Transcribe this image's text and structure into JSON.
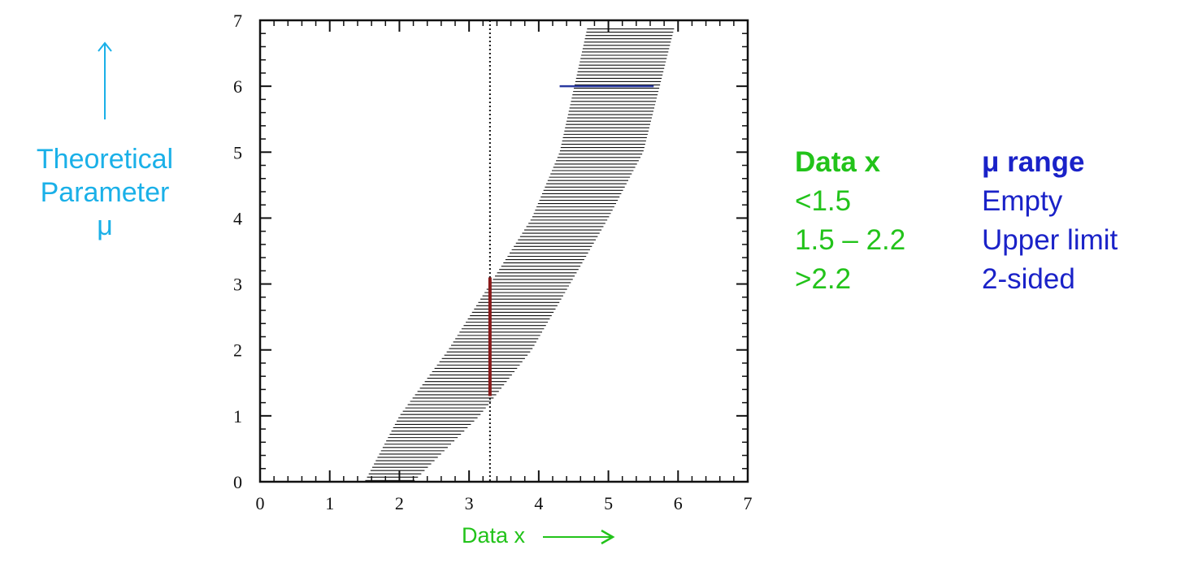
{
  "colors": {
    "ylabel": "#1ab0e8",
    "xlabel": "#22c31a",
    "data_col": "#22c31a",
    "mu_col": "#1a22c8",
    "band": "#111111",
    "measured": "#8a1a1a",
    "upper": "#2a3aa0"
  },
  "ylabel": {
    "arrow_icon": "up-arrow",
    "line1": "Theoretical",
    "line2": "Parameter",
    "line3": "μ"
  },
  "xlabel": {
    "text": "Data x",
    "arrow_icon": "right-arrow"
  },
  "legend": {
    "header_x": "Data x",
    "header_mu": "μ range",
    "rows": [
      {
        "x": "<1.5",
        "mu": "Empty"
      },
      {
        "x": "1.5 – 2.2",
        "mu": "Upper limit"
      },
      {
        "x": ">2.2",
        "mu": "2-sided"
      }
    ]
  },
  "chart_data": {
    "type": "area",
    "title": "",
    "xlabel": "Data x",
    "ylabel": "Theoretical Parameter μ",
    "xlim": [
      0,
      7
    ],
    "ylim": [
      0,
      7
    ],
    "x_ticks": [
      "0",
      "1",
      "2",
      "3",
      "4",
      "5",
      "6",
      "7"
    ],
    "y_ticks": [
      "0",
      "1",
      "2",
      "3",
      "4",
      "5",
      "6",
      "7"
    ],
    "band_left_x": [
      1.5,
      2.0,
      2.7,
      3.3,
      3.9,
      4.3,
      4.7
    ],
    "band_right_x": [
      2.2,
      3.15,
      3.9,
      4.45,
      5.0,
      5.5,
      5.95
    ],
    "band_mu": [
      0,
      1,
      2,
      3,
      4,
      5,
      6.9
    ],
    "measured_x": 3.3,
    "measured_interval": [
      1.3,
      3.1
    ],
    "upper_line": {
      "mu": 6,
      "x_from": 4.3,
      "x_to": 5.65
    }
  }
}
